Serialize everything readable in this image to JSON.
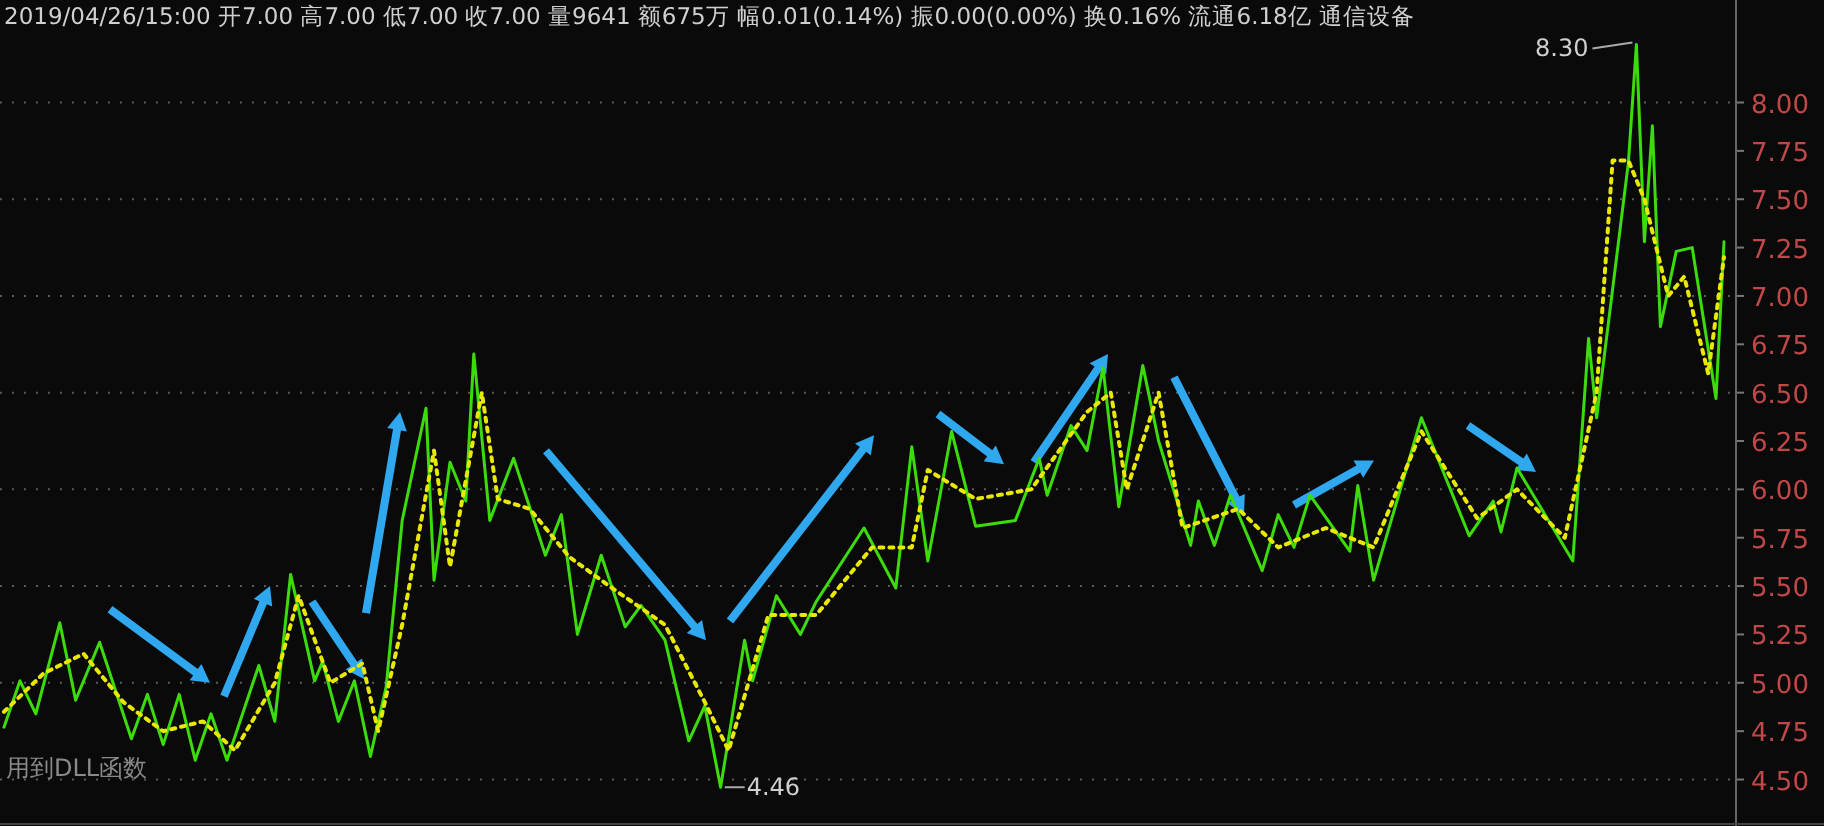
{
  "chart_data": {
    "type": "line",
    "title": "2019/04/26/15:00 开7.00 高7.00 低7.00 收7.00 量9641 额675万 幅0.01(0.14%) 振0.00(0.00%) 换0.16% 流通6.18亿 通信设备",
    "annotations": [
      "8.30",
      "4.46",
      "用到DLL函数"
    ],
    "categories": [
      null,
      null,
      null,
      null,
      null,
      null,
      null,
      null,
      null,
      null,
      null,
      null,
      null,
      null,
      null,
      null,
      null,
      null,
      null,
      null,
      null,
      null,
      null,
      null,
      null,
      null,
      null,
      null,
      null,
      null,
      null,
      null,
      null,
      null,
      null,
      null,
      null,
      null,
      null,
      null,
      null,
      null,
      null,
      null,
      null,
      null,
      null,
      null,
      null,
      null,
      null,
      null,
      null,
      null,
      null,
      null,
      null,
      null,
      null,
      null,
      null,
      null,
      null,
      null,
      null,
      null,
      null,
      null,
      null,
      null,
      null,
      null,
      null,
      null,
      null,
      null,
      null,
      null,
      null,
      null,
      null,
      null,
      null,
      null,
      null,
      null,
      null,
      null,
      null,
      null,
      null,
      null,
      null,
      null,
      null,
      null,
      null,
      null,
      null,
      null,
      null,
      null,
      null,
      null,
      null,
      null,
      null,
      null,
      null,
      null,
      null,
      null,
      null,
      null,
      null,
      null,
      null,
      null,
      null,
      null,
      null,
      null,
      null,
      null,
      null,
      null,
      null,
      null,
      null,
      null,
      null,
      null,
      null,
      null,
      null,
      null,
      null,
      null,
      null,
      null,
      null,
      null,
      null,
      null,
      null,
      null,
      null,
      null,
      null,
      null,
      null,
      null,
      null,
      null,
      null,
      null,
      null,
      null,
      null,
      null,
      null,
      null,
      null,
      null,
      null,
      null,
      null,
      null,
      null,
      null,
      null,
      null,
      null,
      null,
      null,
      null,
      null,
      null,
      null,
      null,
      null,
      null,
      null,
      null,
      null,
      null,
      null,
      null,
      null,
      null,
      null,
      null,
      null,
      null,
      null,
      null,
      null,
      null,
      null,
      null,
      null,
      null,
      null,
      null,
      null,
      null,
      null,
      null,
      null,
      null,
      null,
      null,
      null,
      null,
      null,
      null,
      null,
      null
    ],
    "ylim": [
      4.27,
      8.53
    ],
    "yticks": [
      {
        "value": 4.5,
        "label": "4.50"
      },
      4.75,
      {
        "value": 5,
        "label": "5.00"
      },
      5.25,
      {
        "value": 5.5,
        "label": "5.50"
      },
      5.75,
      {
        "value": 6,
        "label": "6.00"
      },
      6.25,
      {
        "value": 6.5,
        "label": "6.50"
      },
      6.75,
      {
        "value": 7,
        "label": "7.00"
      },
      7.25,
      {
        "value": 7.5,
        "label": "7.50"
      },
      7.75,
      {
        "value": 8,
        "label": "8.00"
      }
    ],
    "grid": "y",
    "tick_labels": "y",
    "marker": "none",
    "series": [
      {
        "color": "#3cdc0a",
        "line_style": "solid",
        "values": [
          4.77,
          null,
          5.01,
          null,
          4.84,
          null,
          null,
          5.31,
          null,
          4.91,
          null,
          null,
          5.21,
          null,
          null,
          null,
          4.71,
          null,
          4.94,
          null,
          4.68,
          null,
          4.94,
          null,
          4.6,
          null,
          4.84,
          null,
          4.6,
          null,
          null,
          null,
          5.09,
          null,
          4.8,
          null,
          5.56,
          null,
          null,
          5.01,
          5.11,
          null,
          4.8,
          null,
          5.01,
          null,
          4.62,
          null,
          4.98,
          null,
          5.84,
          null,
          null,
          6.42,
          5.53,
          null,
          6.14,
          null,
          5.94,
          6.7,
          null,
          5.84,
          null,
          null,
          6.16,
          null,
          null,
          null,
          5.66,
          null,
          5.87,
          null,
          5.25,
          null,
          null,
          5.66,
          null,
          null,
          5.29,
          null,
          5.4,
          null,
          null,
          5.22,
          null,
          null,
          4.7,
          null,
          4.88,
          null,
          4.46,
          null,
          null,
          5.22,
          5.01,
          null,
          null,
          5.45,
          null,
          null,
          5.25,
          null,
          5.42,
          null,
          null,
          null,
          null,
          null,
          5.8,
          null,
          null,
          null,
          5.49,
          null,
          6.22,
          null,
          5.63,
          null,
          6.07,
          6.3,
          null,
          null,
          5.81,
          null,
          null,
          null,
          null,
          5.84,
          null,
          null,
          6.16,
          5.97,
          null,
          null,
          6.33,
          null,
          6.2,
          null,
          6.63,
          null,
          5.91,
          null,
          null,
          6.64,
          null,
          6.25,
          null,
          null,
          null,
          5.71,
          5.94,
          null,
          5.71,
          null,
          5.97,
          null,
          null,
          null,
          5.58,
          null,
          5.87,
          null,
          5.7,
          null,
          5.97,
          null,
          null,
          null,
          null,
          5.68,
          6.02,
          null,
          5.53,
          null,
          null,
          null,
          null,
          null,
          6.37,
          null,
          null,
          null,
          null,
          null,
          5.76,
          null,
          null,
          5.94,
          5.78,
          null,
          6.11,
          null,
          null,
          null,
          null,
          null,
          null,
          5.63,
          null,
          6.78,
          6.37,
          null,
          null,
          null,
          7.69,
          8.3,
          7.28,
          7.88,
          6.84,
          null,
          7.23,
          null,
          7.25,
          null,
          null,
          6.47,
          7.28,
          null
        ]
      },
      {
        "color": "#e8e800",
        "line_style": "dotted",
        "values": [
          4.85,
          null,
          null,
          null,
          null,
          5.05,
          null,
          null,
          null,
          null,
          5.15,
          null,
          null,
          null,
          null,
          4.9,
          null,
          null,
          null,
          null,
          4.75,
          null,
          null,
          null,
          null,
          4.8,
          null,
          null,
          null,
          4.65,
          null,
          null,
          null,
          null,
          5.0,
          null,
          null,
          5.45,
          null,
          null,
          null,
          5.0,
          null,
          null,
          null,
          5.1,
          null,
          4.75,
          null,
          null,
          5.3,
          null,
          null,
          null,
          6.2,
          null,
          5.6,
          null,
          null,
          null,
          6.5,
          null,
          5.95,
          null,
          null,
          null,
          5.9,
          null,
          null,
          null,
          null,
          5.65,
          null,
          null,
          null,
          null,
          5.5,
          null,
          null,
          null,
          null,
          null,
          null,
          5.3,
          null,
          null,
          null,
          null,
          4.9,
          null,
          null,
          4.65,
          null,
          null,
          null,
          null,
          5.35,
          null,
          null,
          null,
          null,
          null,
          5.35,
          null,
          null,
          null,
          null,
          null,
          null,
          5.7,
          null,
          null,
          null,
          null,
          5.7,
          null,
          6.1,
          null,
          null,
          null,
          null,
          null,
          5.95,
          null,
          null,
          null,
          null,
          null,
          null,
          6.0,
          null,
          null,
          null,
          null,
          null,
          null,
          6.4,
          null,
          null,
          6.5,
          null,
          6.0,
          null,
          null,
          null,
          6.5,
          null,
          null,
          5.8,
          null,
          null,
          null,
          null,
          null,
          null,
          5.9,
          null,
          null,
          null,
          null,
          5.7,
          null,
          null,
          null,
          null,
          null,
          5.8,
          null,
          null,
          null,
          null,
          null,
          5.7,
          null,
          null,
          null,
          null,
          null,
          6.3,
          null,
          null,
          null,
          null,
          null,
          null,
          5.85,
          null,
          null,
          null,
          null,
          6.0,
          null,
          null,
          null,
          null,
          null,
          5.75,
          null,
          null,
          null,
          6.5,
          null,
          7.7,
          null,
          7.7,
          null,
          7.5,
          null,
          null,
          7.0,
          null,
          7.1,
          null,
          null,
          6.6,
          null,
          7.2,
          null
        ]
      }
    ]
  }
}
